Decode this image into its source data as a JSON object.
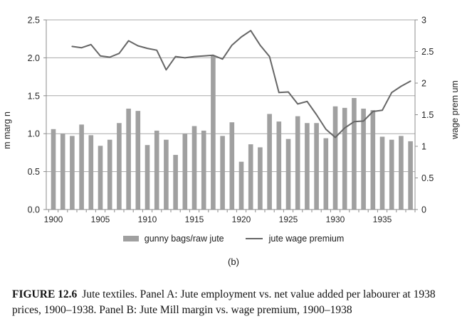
{
  "figure": {
    "panel_label": "(b)",
    "caption_label": "FIGURE 12.6",
    "caption_text": "Jute textiles. Panel A: Jute employment vs. net value added per labourer at 1938 prices, 1900–1938. Panel B: Jute Mill margin vs. wage premium, 1900–1938"
  },
  "chart_data": {
    "type": "bar",
    "subtype": "bar-plus-line-dual-axis",
    "categories": [
      1900,
      1901,
      1902,
      1903,
      1904,
      1905,
      1906,
      1907,
      1908,
      1909,
      1910,
      1911,
      1912,
      1913,
      1914,
      1915,
      1916,
      1917,
      1918,
      1919,
      1920,
      1921,
      1922,
      1923,
      1924,
      1925,
      1926,
      1927,
      1928,
      1929,
      1930,
      1931,
      1932,
      1933,
      1934,
      1935,
      1936,
      1937,
      1938
    ],
    "series": [
      {
        "name": "gunny bags/raw jute",
        "type": "bar",
        "axis": "left",
        "color": "#a0a0a0",
        "values": [
          1.06,
          1.0,
          0.97,
          1.12,
          0.98,
          0.84,
          0.92,
          1.14,
          1.33,
          1.3,
          0.85,
          1.04,
          0.92,
          0.72,
          1.0,
          1.1,
          1.04,
          2.03,
          0.97,
          1.15,
          0.63,
          0.86,
          0.82,
          1.26,
          1.16,
          0.93,
          1.23,
          1.14,
          1.14,
          0.94,
          1.36,
          1.34,
          1.47,
          1.33,
          1.31,
          0.96,
          0.92,
          0.97,
          0.9
        ]
      },
      {
        "name": "jute wage premium",
        "type": "line",
        "axis": "right",
        "color": "#666666",
        "values": [
          null,
          null,
          2.58,
          2.56,
          2.61,
          2.43,
          2.41,
          2.47,
          2.67,
          2.59,
          2.55,
          2.52,
          2.21,
          2.42,
          2.4,
          2.42,
          2.43,
          2.44,
          2.38,
          2.6,
          2.73,
          2.83,
          2.6,
          2.42,
          1.85,
          1.86,
          1.67,
          1.71,
          1.5,
          1.27,
          1.14,
          1.29,
          1.39,
          1.4,
          1.55,
          1.57,
          1.85,
          1.95,
          2.03
        ]
      }
    ],
    "left_axis": {
      "title": "m marg n",
      "min": 0,
      "max": 2.5,
      "tick_step": 0.5,
      "tick_labels": [
        "0.0",
        "0.5",
        "1.0",
        "1.5",
        "2.0",
        "2.5"
      ]
    },
    "right_axis": {
      "title": "wage prem um",
      "min": 0,
      "max": 3,
      "tick_step": 0.5,
      "tick_labels": [
        "0",
        "0.5",
        "1",
        "1.5",
        "2",
        "2.5",
        "3"
      ]
    },
    "x_axis": {
      "tick_years": [
        1900,
        1905,
        1910,
        1915,
        1920,
        1925,
        1930,
        1935
      ],
      "tick_labels": [
        "1900",
        "1905",
        "1910",
        "1915",
        "1920",
        "1925",
        "1930",
        "1935"
      ]
    },
    "legend": {
      "position": "bottom",
      "entries": [
        "gunny bags/raw jute",
        "jute wage premium"
      ]
    },
    "grid": true,
    "colors": {
      "grid": "#a9a9a9",
      "spine": "#8c8c8c",
      "tick_text": "#262626"
    }
  }
}
